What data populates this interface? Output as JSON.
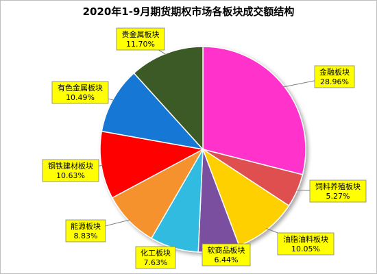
{
  "chart_data": {
    "type": "pie",
    "title": "2020年1-9月期货期权市场各板块成交额结构",
    "slices": [
      {
        "label": "金融板块",
        "value": 28.96,
        "display": "28.96%",
        "color": "#ff33cc"
      },
      {
        "label": "饲料养殖板块",
        "value": 5.27,
        "display": "5.27%",
        "color": "#e05050"
      },
      {
        "label": "油脂油料板块",
        "value": 10.05,
        "display": "10.05%",
        "color": "#ffd000"
      },
      {
        "label": "软商品板块",
        "value": 6.44,
        "display": "6.44%",
        "color": "#7a4fa0"
      },
      {
        "label": "化工板块",
        "value": 7.63,
        "display": "7.63%",
        "color": "#33bbe0"
      },
      {
        "label": "能源板块",
        "value": 8.83,
        "display": "8.83%",
        "color": "#f5922f"
      },
      {
        "label": "钢铁建材板块",
        "value": 10.63,
        "display": "10.63%",
        "color": "#ff0000"
      },
      {
        "label": "有色金属板块",
        "value": 10.49,
        "display": "10.49%",
        "color": "#1477d4"
      },
      {
        "label": "贵金属板块",
        "value": 11.7,
        "display": "11.70%",
        "color": "#3a5a25"
      }
    ],
    "legend": "none",
    "label_style": "callout"
  }
}
